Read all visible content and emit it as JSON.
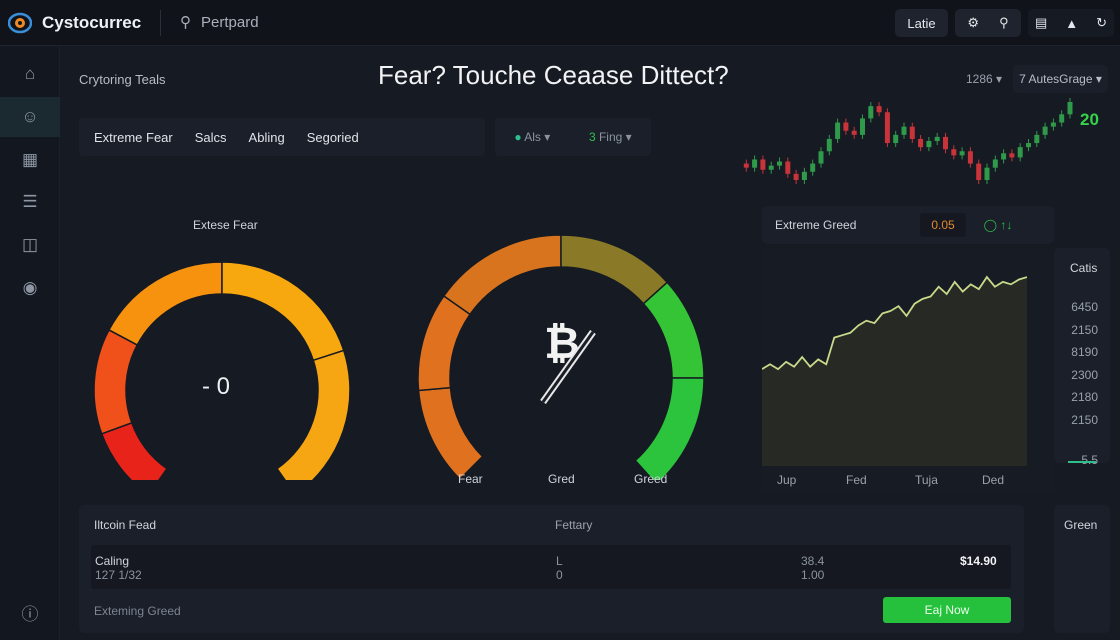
{
  "topbar": {
    "brand": "Cystocurrec",
    "search_value": "Pertpard",
    "latest_label": "Latie"
  },
  "page": {
    "title": "Fear? Touche Ceaase Dittect?",
    "subtitle": "Crytoring Teals"
  },
  "tabs": [
    "Extreme Fear",
    "Salcs",
    "Abling",
    "Segoried"
  ],
  "filters": [
    {
      "label": "Als"
    },
    {
      "prefix": "3",
      "label": "Fing"
    }
  ],
  "chart_controls": {
    "range": "1286",
    "mode": "7 AutesGrage"
  },
  "candles": {
    "last_label": "20",
    "closes": [
      60,
      58,
      62,
      57,
      59,
      61,
      55,
      52,
      56,
      60,
      66,
      72,
      80,
      76,
      74,
      82,
      88,
      85,
      70,
      74,
      78,
      72,
      68,
      71,
      73,
      67,
      64,
      66,
      60,
      52,
      58,
      62,
      65,
      63,
      68,
      70,
      74,
      78,
      80,
      84,
      90
    ]
  },
  "gauge_left": {
    "label": "Extese Fear",
    "value": "- 0"
  },
  "gauge_mid": {
    "labels": [
      "Fear",
      "Gred",
      "Greed"
    ]
  },
  "greed_panel": {
    "label": "Extreme Greed",
    "value": "0.05",
    "colors": {
      "value": "#e08a2c",
      "accent": "#2fbf4a"
    }
  },
  "area_chart": {
    "x_labels": [
      "Jup",
      "Fed",
      "Tuja",
      "Ded"
    ],
    "values": [
      40,
      42,
      40,
      43,
      41,
      45,
      41,
      44,
      42,
      53,
      54,
      55,
      58,
      60,
      59,
      63,
      64,
      66,
      62,
      67,
      69,
      70,
      74,
      71,
      76,
      72,
      75,
      73,
      78,
      74,
      76,
      75,
      77,
      78
    ]
  },
  "side_list": {
    "title": "Catis",
    "values": [
      "6450",
      "2150",
      "8190",
      "2300",
      "2180",
      "2150",
      "5.5"
    ]
  },
  "feed": {
    "title": "Iltcoin Fead",
    "col2": "Fettary",
    "row": {
      "name": "Caling",
      "sub": "127 1/32",
      "c2a": "L",
      "c2b": "0",
      "c3a": "38.4",
      "c3b": "1.00",
      "price": "$14.90"
    },
    "footer": "Exteming Greed",
    "button": "Eaj Now"
  },
  "green_panel": {
    "title": "Green"
  }
}
